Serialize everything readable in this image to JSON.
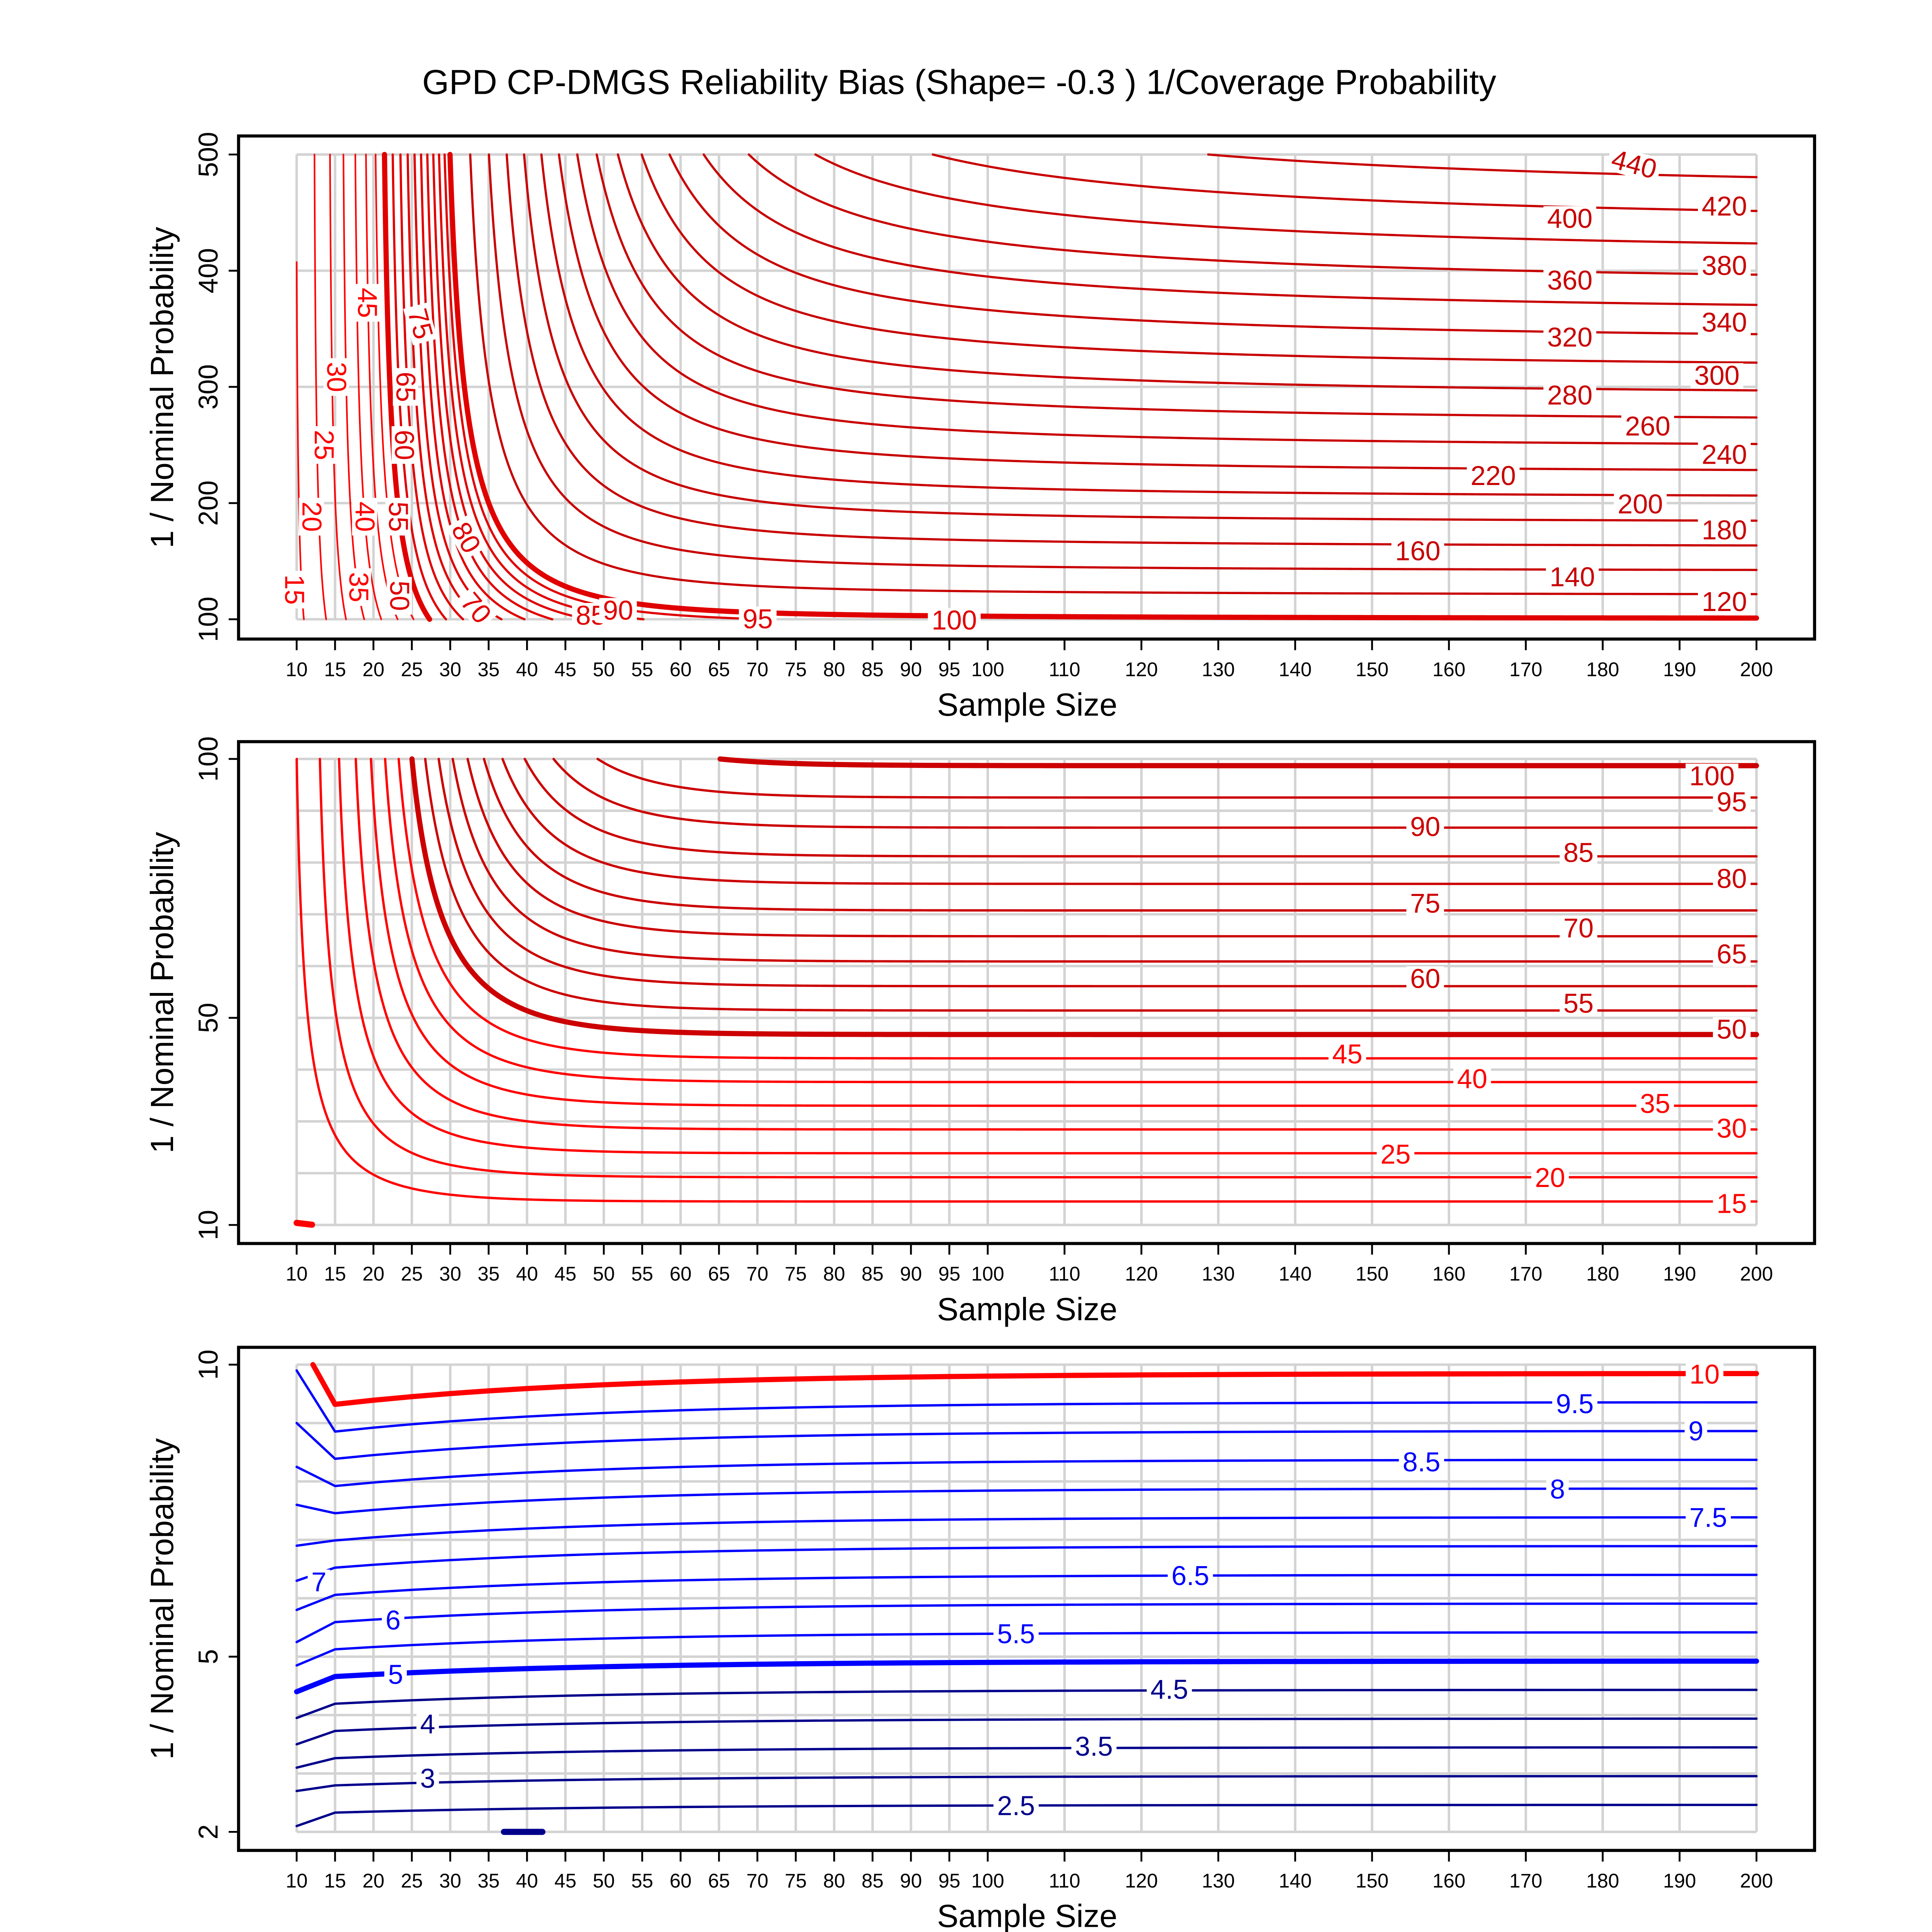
{
  "title": "GPD CP-DMGS Reliability Bias (Shape= -0.3 ) 1/Coverage Probability",
  "chart_data": [
    {
      "type": "contour",
      "xlabel": "Sample Size",
      "ylabel": "1 / Nominal Probability",
      "xlim": [
        10,
        200
      ],
      "ylim": [
        100,
        500
      ],
      "x_ticks": [
        10,
        15,
        20,
        25,
        30,
        35,
        40,
        45,
        50,
        55,
        60,
        65,
        70,
        75,
        80,
        85,
        90,
        95,
        100,
        110,
        120,
        130,
        140,
        150,
        160,
        170,
        180,
        190,
        200
      ],
      "y_ticks": [
        100,
        200,
        300,
        400,
        500
      ],
      "y_grid": [
        100,
        200,
        300,
        400,
        500
      ],
      "levels": [
        15,
        20,
        25,
        30,
        35,
        40,
        45,
        50,
        55,
        60,
        65,
        70,
        75,
        80,
        85,
        90,
        95,
        100,
        120,
        140,
        160,
        180,
        200,
        220,
        240,
        260,
        280,
        300,
        320,
        340,
        360,
        380,
        400,
        420,
        440
      ],
      "thick_levels": [
        50,
        100
      ],
      "colors": {
        "low": "#ff0000",
        "mid": "#e00000",
        "high": "#c80000"
      },
      "stub_segments": []
    },
    {
      "type": "contour",
      "xlabel": "Sample Size",
      "ylabel": "1 / Nominal Probability",
      "xlim": [
        10,
        200
      ],
      "ylim": [
        10,
        100
      ],
      "x_ticks": [
        10,
        15,
        20,
        25,
        30,
        35,
        40,
        45,
        50,
        55,
        60,
        65,
        70,
        75,
        80,
        85,
        90,
        95,
        100,
        110,
        120,
        130,
        140,
        150,
        160,
        170,
        180,
        190,
        200
      ],
      "y_ticks": [
        10,
        50,
        100
      ],
      "y_grid": [
        10,
        20,
        30,
        40,
        50,
        60,
        70,
        80,
        90,
        100
      ],
      "levels": [
        15,
        20,
        25,
        30,
        35,
        40,
        45,
        50,
        55,
        60,
        65,
        70,
        75,
        80,
        85,
        90,
        95,
        100
      ],
      "thick_levels": [
        50,
        100
      ],
      "colors": {
        "low": "#ff0000",
        "mid": "#d80000",
        "high": "#cc0000"
      },
      "stub_segments": [
        {
          "level": 10,
          "points": [
            [
              10,
              10.4
            ],
            [
              12,
              10.05
            ]
          ],
          "color": "#ff0000"
        }
      ]
    },
    {
      "type": "contour",
      "xlabel": "Sample Size",
      "ylabel": "1 / Nominal Probability",
      "xlim": [
        10,
        200
      ],
      "ylim": [
        2,
        10
      ],
      "x_ticks": [
        10,
        15,
        20,
        25,
        30,
        35,
        40,
        45,
        50,
        55,
        60,
        65,
        70,
        75,
        80,
        85,
        90,
        95,
        100,
        110,
        120,
        130,
        140,
        150,
        160,
        170,
        180,
        190,
        200
      ],
      "y_ticks": [
        2,
        5,
        10
      ],
      "y_grid": [
        2,
        3,
        4,
        5,
        6,
        7,
        8,
        9,
        10
      ],
      "levels": [
        2.5,
        3,
        3.5,
        4,
        4.5,
        5,
        5.5,
        6,
        6.5,
        7,
        7.5,
        8,
        8.5,
        9,
        9.5,
        10
      ],
      "thick_levels": [
        5,
        10
      ],
      "colors": {
        "low": "#00008b",
        "mid": "#0000ff",
        "high": "#ff0000"
      },
      "stub_segments": [
        {
          "level": 2,
          "points": [
            [
              37,
              2
            ],
            [
              42,
              2
            ]
          ],
          "color": "#00008b"
        }
      ]
    }
  ]
}
